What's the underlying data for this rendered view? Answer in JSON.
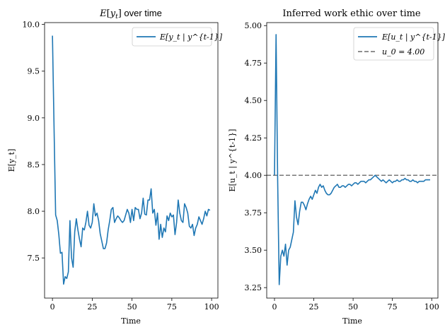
{
  "chart_data": [
    {
      "type": "line",
      "title": "E[y_t] over time",
      "xlabel": "Time",
      "ylabel": "E[y_t]",
      "xlim": [
        -4.95,
        103.95
      ],
      "ylim": [
        7.07,
        10.02
      ],
      "xticks": [
        0,
        25,
        50,
        75,
        100
      ],
      "xtick_labels": [
        "0",
        "25",
        "50",
        "75",
        "100"
      ],
      "yticks": [
        7.5,
        8.0,
        8.5,
        9.0,
        9.5,
        10.0
      ],
      "ytick_labels": [
        "7.5",
        "8.0",
        "8.5",
        "9.0",
        "9.5",
        "10.0"
      ],
      "legend_position": "top-right",
      "grid": false,
      "colors": {
        "series": "#1f77b4"
      },
      "series": [
        {
          "name": "E[y_t | y^{t-1}]",
          "x": [
            0,
            1,
            2,
            3,
            4,
            5,
            6,
            7,
            8,
            9,
            10,
            11,
            12,
            13,
            14,
            15,
            16,
            17,
            18,
            19,
            20,
            21,
            22,
            23,
            24,
            25,
            26,
            27,
            28,
            29,
            30,
            31,
            32,
            33,
            34,
            35,
            36,
            37,
            38,
            39,
            40,
            41,
            42,
            43,
            44,
            45,
            46,
            47,
            48,
            49,
            50,
            51,
            52,
            53,
            54,
            55,
            56,
            57,
            58,
            59,
            60,
            61,
            62,
            63,
            64,
            65,
            66,
            67,
            68,
            69,
            70,
            71,
            72,
            73,
            74,
            75,
            76,
            77,
            78,
            79,
            80,
            81,
            82,
            83,
            84,
            85,
            86,
            87,
            88,
            89,
            90,
            91,
            92,
            93,
            94,
            95,
            96,
            97,
            98,
            99
          ],
          "values": [
            9.88,
            8.9,
            7.96,
            7.9,
            7.75,
            7.55,
            7.56,
            7.22,
            7.3,
            7.28,
            7.35,
            7.9,
            7.5,
            7.4,
            7.78,
            7.92,
            7.8,
            7.7,
            7.62,
            7.82,
            7.8,
            7.88,
            8.0,
            7.85,
            7.82,
            7.88,
            8.08,
            7.95,
            7.98,
            7.9,
            7.76,
            7.68,
            7.6,
            7.6,
            7.66,
            7.8,
            7.9,
            8.02,
            8.04,
            7.88,
            7.92,
            7.95,
            7.93,
            7.9,
            7.88,
            7.9,
            7.96,
            8.02,
            7.98,
            7.88,
            8.02,
            7.9,
            8.04,
            8.02,
            8.02,
            7.92,
            7.98,
            8.14,
            7.97,
            7.96,
            8.12,
            8.12,
            8.24,
            7.98,
            8.02,
            7.85,
            7.98,
            7.7,
            7.86,
            7.72,
            7.82,
            7.78,
            7.95,
            7.9,
            7.98,
            7.94,
            7.96,
            7.75,
            7.88,
            8.12,
            7.98,
            7.9,
            7.88,
            8.08,
            8.04,
            7.98,
            7.84,
            7.82,
            7.86,
            7.74,
            7.82,
            7.86,
            7.94,
            7.9,
            7.86,
            7.92,
            8.0,
            7.95,
            8.02,
            8.01
          ]
        }
      ]
    },
    {
      "type": "line",
      "title": "Inferred work ethic over time",
      "xlabel": "Time",
      "ylabel": "E[u_t | y^{t-1}]",
      "xlim": [
        -4.95,
        103.95
      ],
      "ylim": [
        3.18,
        5.02
      ],
      "xticks": [
        0,
        25,
        50,
        75,
        100
      ],
      "xtick_labels": [
        "0",
        "25",
        "50",
        "75",
        "100"
      ],
      "yticks": [
        3.25,
        3.5,
        3.75,
        4.0,
        4.25,
        4.5,
        4.75,
        5.0
      ],
      "ytick_labels": [
        "3.25",
        "3.50",
        "3.75",
        "4.00",
        "4.25",
        "4.50",
        "4.75",
        "5.00"
      ],
      "legend_position": "top-right",
      "grid": false,
      "colors": {
        "series": "#1f77b4",
        "reference": "#808080"
      },
      "reference_line": {
        "name": "u_0 = 4.00",
        "y": 4.0
      },
      "series": [
        {
          "name": "E[u_t | y^{t-1}]",
          "x": [
            0,
            1,
            2,
            3,
            4,
            5,
            6,
            7,
            8,
            9,
            10,
            11,
            12,
            13,
            14,
            15,
            16,
            17,
            18,
            19,
            20,
            21,
            22,
            23,
            24,
            25,
            26,
            27,
            28,
            29,
            30,
            31,
            32,
            33,
            34,
            35,
            36,
            37,
            38,
            39,
            40,
            41,
            42,
            43,
            44,
            45,
            46,
            47,
            48,
            49,
            50,
            51,
            52,
            53,
            54,
            55,
            56,
            57,
            58,
            59,
            60,
            61,
            62,
            63,
            64,
            65,
            66,
            67,
            68,
            69,
            70,
            71,
            72,
            73,
            74,
            75,
            76,
            77,
            78,
            79,
            80,
            81,
            82,
            83,
            84,
            85,
            86,
            87,
            88,
            89,
            90,
            91,
            92,
            93,
            94,
            95,
            96,
            97,
            98,
            99
          ],
          "values": [
            4.0,
            4.94,
            3.98,
            3.27,
            3.46,
            3.5,
            3.46,
            3.54,
            3.4,
            3.5,
            3.52,
            3.57,
            3.62,
            3.83,
            3.72,
            3.67,
            3.76,
            3.82,
            3.82,
            3.8,
            3.77,
            3.81,
            3.84,
            3.86,
            3.84,
            3.87,
            3.9,
            3.88,
            3.92,
            3.94,
            3.92,
            3.93,
            3.9,
            3.88,
            3.87,
            3.87,
            3.88,
            3.9,
            3.92,
            3.93,
            3.94,
            3.92,
            3.92,
            3.93,
            3.93,
            3.92,
            3.93,
            3.94,
            3.94,
            3.93,
            3.94,
            3.95,
            3.95,
            3.94,
            3.95,
            3.96,
            3.96,
            3.96,
            3.95,
            3.96,
            3.97,
            3.97,
            3.98,
            3.99,
            4.0,
            3.99,
            3.98,
            3.97,
            3.96,
            3.97,
            3.96,
            3.95,
            3.96,
            3.97,
            3.96,
            3.95,
            3.96,
            3.96,
            3.97,
            3.96,
            3.96,
            3.97,
            3.97,
            3.98,
            3.97,
            3.97,
            3.96,
            3.96,
            3.97,
            3.96,
            3.96,
            3.95,
            3.96,
            3.96,
            3.96,
            3.96,
            3.97,
            3.97,
            3.97,
            3.97
          ]
        }
      ]
    }
  ]
}
